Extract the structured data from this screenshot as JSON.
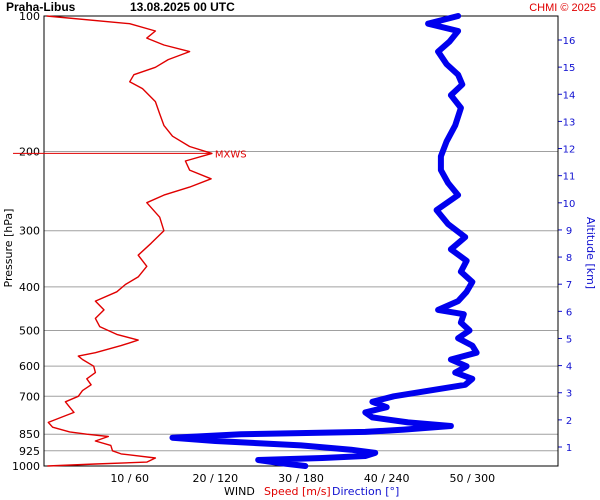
{
  "header": {
    "station": "Praha-Libus",
    "datetime": "13.08.2025 00 UTC",
    "credit": "CHMI © 2025"
  },
  "legend": {
    "wind": "WIND",
    "speed": "Speed [m/s]",
    "direction": "Direction [°]"
  },
  "colors": {
    "speed": "#e00000",
    "direction": "#0000ee",
    "altitude_axis": "#1010d0",
    "grid": "#a0a0a0"
  },
  "chart_data": {
    "type": "line",
    "y_axis": {
      "label": "Pressure [hPa]",
      "scale": "log",
      "range": [
        1000,
        100
      ],
      "ticks": [
        100,
        200,
        300,
        400,
        500,
        600,
        700,
        850,
        925,
        1000
      ]
    },
    "y_axis_right": {
      "label": "Altitude [km]",
      "ticks": [
        1,
        2,
        3,
        4,
        5,
        6,
        7,
        8,
        9,
        10,
        11,
        12,
        13,
        14,
        15,
        16
      ]
    },
    "x_axis": {
      "speed_range": [
        0,
        60
      ],
      "direction_range": [
        0,
        360
      ],
      "tick_labels": [
        "10 / 60",
        "20 / 120",
        "30 / 180",
        "40 / 240",
        "50 / 300"
      ]
    },
    "annotation": {
      "label": "MXWS",
      "pressure": 202,
      "speed": 19.6
    },
    "series": [
      {
        "name": "Speed [m/s]",
        "unit": "m/s",
        "points": [
          [
            1000,
            0.4
          ],
          [
            990,
            6
          ],
          [
            980,
            12
          ],
          [
            960,
            13
          ],
          [
            940,
            9
          ],
          [
            925,
            8
          ],
          [
            900,
            7.8
          ],
          [
            880,
            6
          ],
          [
            860,
            7.5
          ],
          [
            850,
            5
          ],
          [
            840,
            3
          ],
          [
            820,
            1
          ],
          [
            800,
            0.5
          ],
          [
            780,
            2
          ],
          [
            760,
            3.5
          ],
          [
            740,
            3
          ],
          [
            720,
            2.5
          ],
          [
            700,
            4
          ],
          [
            680,
            4.5
          ],
          [
            660,
            5.5
          ],
          [
            640,
            5
          ],
          [
            620,
            6
          ],
          [
            600,
            5.8
          ],
          [
            580,
            4.5
          ],
          [
            570,
            4
          ],
          [
            560,
            6
          ],
          [
            540,
            9
          ],
          [
            525,
            11
          ],
          [
            510,
            8.5
          ],
          [
            490,
            6.5
          ],
          [
            470,
            6
          ],
          [
            450,
            7
          ],
          [
            430,
            6
          ],
          [
            410,
            8.5
          ],
          [
            395,
            9.5
          ],
          [
            380,
            11
          ],
          [
            360,
            12
          ],
          [
            340,
            11
          ],
          [
            320,
            12.5
          ],
          [
            300,
            14
          ],
          [
            280,
            13.5
          ],
          [
            260,
            12
          ],
          [
            250,
            14
          ],
          [
            240,
            17
          ],
          [
            230,
            19.5
          ],
          [
            220,
            17
          ],
          [
            210,
            16.5
          ],
          [
            202,
            19.6
          ],
          [
            195,
            17
          ],
          [
            185,
            15
          ],
          [
            175,
            14
          ],
          [
            165,
            13.5
          ],
          [
            155,
            13
          ],
          [
            145,
            11.5
          ],
          [
            140,
            10
          ],
          [
            135,
            10.5
          ],
          [
            130,
            13
          ],
          [
            125,
            14.5
          ],
          [
            120,
            17
          ],
          [
            116,
            14
          ],
          [
            112,
            12
          ],
          [
            108,
            13
          ],
          [
            104,
            10
          ],
          [
            100,
            0.3
          ]
        ]
      },
      {
        "name": "Direction [°]",
        "unit": "°",
        "points": [
          [
            1000,
            183
          ],
          [
            985,
            165
          ],
          [
            970,
            150
          ],
          [
            960,
            195
          ],
          [
            950,
            225
          ],
          [
            935,
            232
          ],
          [
            920,
            215
          ],
          [
            900,
            180
          ],
          [
            880,
            120
          ],
          [
            865,
            90
          ],
          [
            850,
            138
          ],
          [
            840,
            225
          ],
          [
            830,
            252
          ],
          [
            815,
            285
          ],
          [
            800,
            255
          ],
          [
            780,
            230
          ],
          [
            760,
            225
          ],
          [
            740,
            240
          ],
          [
            720,
            230
          ],
          [
            700,
            245
          ],
          [
            680,
            270
          ],
          [
            660,
            295
          ],
          [
            640,
            300
          ],
          [
            620,
            288
          ],
          [
            600,
            296
          ],
          [
            580,
            285
          ],
          [
            560,
            303
          ],
          [
            540,
            300
          ],
          [
            520,
            290
          ],
          [
            500,
            298
          ],
          [
            480,
            292
          ],
          [
            460,
            294
          ],
          [
            450,
            276
          ],
          [
            430,
            290
          ],
          [
            410,
            296
          ],
          [
            390,
            300
          ],
          [
            370,
            292
          ],
          [
            350,
            296
          ],
          [
            330,
            285
          ],
          [
            310,
            295
          ],
          [
            290,
            283
          ],
          [
            270,
            275
          ],
          [
            250,
            290
          ],
          [
            235,
            283
          ],
          [
            220,
            278
          ],
          [
            205,
            278
          ],
          [
            190,
            282
          ],
          [
            175,
            288
          ],
          [
            160,
            292
          ],
          [
            150,
            285
          ],
          [
            142,
            293
          ],
          [
            135,
            290
          ],
          [
            128,
            282
          ],
          [
            120,
            276
          ],
          [
            114,
            284
          ],
          [
            108,
            290
          ],
          [
            104,
            269
          ],
          [
            100,
            290
          ]
        ]
      }
    ]
  }
}
